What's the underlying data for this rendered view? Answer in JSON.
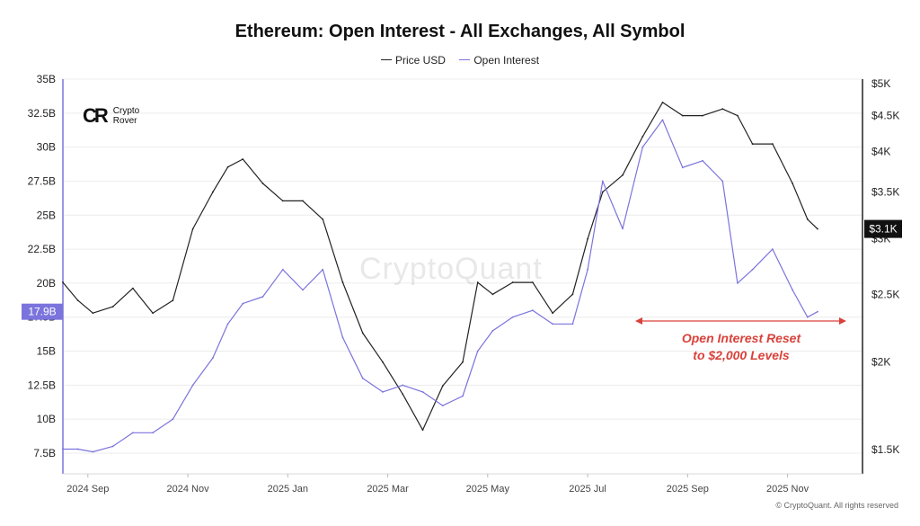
{
  "title": "Ethereum: Open Interest - All Exchanges, All Symbol",
  "legend": [
    {
      "name": "Price USD",
      "color": "#222222"
    },
    {
      "name": "Open Interest",
      "color": "#7b74dc"
    }
  ],
  "logo": {
    "mark": "CR",
    "text": "Crypto Rover"
  },
  "watermark": "CryptoQuant",
  "annotation": {
    "line1": "Open Interest Reset",
    "line2": "to $2,000 Levels",
    "color": "#d9423b"
  },
  "copyright": "© CryptoQuant. All rights reserved",
  "chart_data": {
    "type": "line",
    "left_axis": {
      "label": "Open Interest",
      "ticks": [
        "35B",
        "32.5B",
        "30B",
        "27.5B",
        "25B",
        "22.5B",
        "20B",
        "17.5B",
        "15B",
        "12.5B",
        "10B",
        "7.5B"
      ],
      "values": [
        35,
        32.5,
        30,
        27.5,
        25,
        22.5,
        20,
        17.5,
        15,
        12.5,
        10,
        7.5
      ],
      "range": [
        7.5,
        35
      ],
      "current_label": "17.9B",
      "current_value": 17.9
    },
    "right_axis": {
      "label": "Price USD",
      "scale": "log",
      "ticks": [
        "$5K",
        "$4.5K",
        "$4K",
        "$3.5K",
        "$3K",
        "$2.5K",
        "$2K",
        "$1.5K"
      ],
      "values": [
        5000,
        4500,
        4000,
        3500,
        3000,
        2500,
        2000,
        1500
      ],
      "current_label": "$3.1K",
      "current_value": 3100
    },
    "x_ticks": [
      "2024 Sep",
      "2024 Nov",
      "2025 Jan",
      "2025 Mar",
      "2025 May",
      "2025 Jul",
      "2025 Sep",
      "2025 Nov"
    ],
    "x_range": [
      0,
      16
    ],
    "x_tick_positions": [
      0.5,
      2.5,
      4.5,
      6.5,
      8.5,
      10.5,
      12.5,
      14.5
    ],
    "grid": true,
    "series": [
      {
        "name": "Price USD",
        "axis": "right",
        "color": "#222222",
        "x": [
          0,
          0.3,
          0.6,
          1.0,
          1.4,
          1.8,
          2.2,
          2.6,
          3.0,
          3.3,
          3.6,
          4.0,
          4.4,
          4.8,
          5.2,
          5.6,
          6.0,
          6.4,
          6.8,
          7.2,
          7.6,
          8.0,
          8.3,
          8.6,
          9.0,
          9.4,
          9.8,
          10.2,
          10.5,
          10.8,
          11.2,
          11.6,
          12.0,
          12.4,
          12.8,
          13.2,
          13.5,
          13.8,
          14.2,
          14.6,
          14.9,
          15.1
        ],
        "y": [
          2600,
          2450,
          2350,
          2400,
          2550,
          2350,
          2450,
          3100,
          3500,
          3800,
          3900,
          3600,
          3400,
          3400,
          3200,
          2600,
          2200,
          2000,
          1800,
          1600,
          1850,
          2000,
          2600,
          2500,
          2600,
          2600,
          2350,
          2500,
          3000,
          3500,
          3700,
          4200,
          4700,
          4500,
          4500,
          4600,
          4500,
          4100,
          4100,
          3600,
          3200,
          3100
        ]
      },
      {
        "name": "Open Interest",
        "axis": "left",
        "color": "#7b74dc",
        "x": [
          0,
          0.3,
          0.6,
          1.0,
          1.4,
          1.8,
          2.2,
          2.6,
          3.0,
          3.3,
          3.6,
          4.0,
          4.4,
          4.8,
          5.2,
          5.6,
          6.0,
          6.4,
          6.8,
          7.2,
          7.6,
          8.0,
          8.3,
          8.6,
          9.0,
          9.4,
          9.8,
          10.2,
          10.5,
          10.8,
          11.2,
          11.6,
          12.0,
          12.4,
          12.8,
          13.2,
          13.5,
          13.8,
          14.2,
          14.6,
          14.9,
          15.1
        ],
        "y": [
          7.8,
          7.8,
          7.6,
          8.0,
          9.0,
          9.0,
          10.0,
          12.5,
          14.5,
          17.0,
          18.5,
          19.0,
          21.0,
          19.5,
          21.0,
          16.0,
          13.0,
          12.0,
          12.5,
          12.0,
          11.0,
          11.7,
          15.0,
          16.5,
          17.5,
          18.0,
          17.0,
          17.0,
          21.0,
          27.5,
          24.0,
          30.0,
          32.0,
          28.5,
          29.0,
          27.5,
          20.0,
          21.0,
          22.5,
          19.5,
          17.5,
          17.9
        ]
      }
    ]
  }
}
